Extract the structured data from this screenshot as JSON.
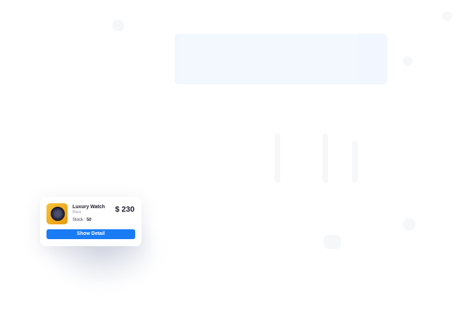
{
  "product_card": {
    "name": "Luxury Watch",
    "color": "Black",
    "stock_label": "Stock :",
    "stock_value": "50",
    "price": "$ 230",
    "button_label": "Show Detail"
  }
}
